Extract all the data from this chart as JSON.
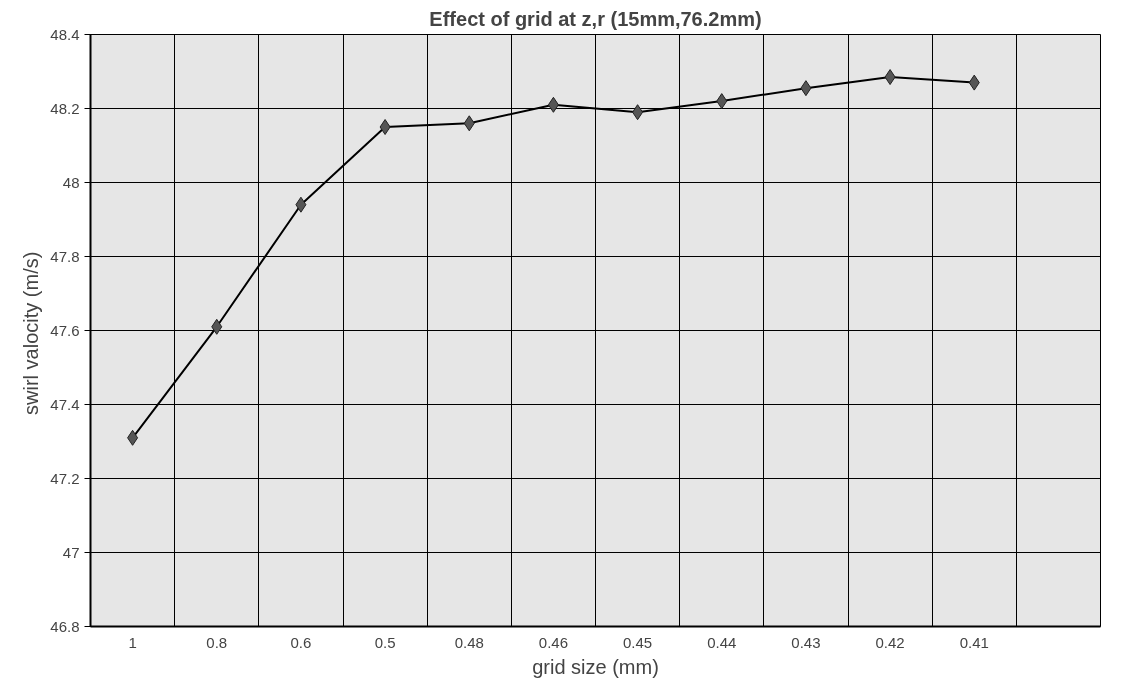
{
  "chart_data": {
    "type": "line",
    "title": "Effect of grid at z,r (15mm,76.2mm)",
    "xlabel": "grid size (mm)",
    "ylabel": "swirl valocity  (m/s)",
    "categories": [
      "1",
      "0.8",
      "0.6",
      "0.5",
      "0.48",
      "0.46",
      "0.45",
      "0.44",
      "0.43",
      "0.42",
      "0.41",
      null
    ],
    "series": [
      {
        "color": "#000000",
        "values": [
          47.31,
          47.61,
          47.94,
          48.15,
          48.16,
          48.21,
          48.19,
          48.22,
          48.255,
          48.285,
          48.27,
          null
        ]
      }
    ],
    "ylim": [
      46.8,
      48.4
    ],
    "yticks": [
      46.8,
      47,
      47.2,
      47.4,
      47.6,
      47.8,
      48,
      48.2,
      48.4
    ],
    "grid": true,
    "marker": "diamond",
    "line_style": "solid"
  }
}
